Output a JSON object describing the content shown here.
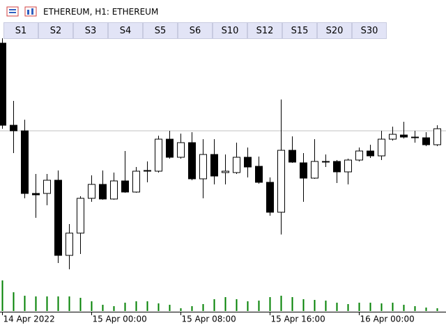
{
  "header": {
    "title": "ETHEREUM, H1:  ETHEREUM"
  },
  "buttons": [
    "S1",
    "S2",
    "S3",
    "S4",
    "S5",
    "S6",
    "S10",
    "S12",
    "S15",
    "S20",
    "S30"
  ],
  "chart_data": {
    "type": "candlestick",
    "categories": [
      "14 Apr 2022",
      null,
      null,
      null,
      null,
      null,
      null,
      null,
      "15 Apr 00:00",
      null,
      null,
      null,
      null,
      null,
      null,
      null,
      "15 Apr 08:00",
      null,
      null,
      null,
      null,
      null,
      null,
      null,
      "15 Apr 16:00",
      null,
      null,
      null,
      null,
      null,
      null,
      null,
      "16 Apr 00:00",
      null,
      null,
      null,
      null,
      null,
      null,
      null
    ],
    "open": [
      388,
      270,
      262,
      172,
      172,
      191,
      83,
      115,
      165,
      185,
      164,
      190,
      174,
      204,
      204,
      250,
      224,
      245,
      193,
      228,
      202,
      202,
      224,
      211,
      188,
      145,
      234,
      216,
      194,
      217,
      218,
      203,
      220,
      233,
      226,
      250,
      256,
      253,
      252,
      242
    ],
    "high": [
      395,
      305,
      278,
      200,
      200,
      205,
      128,
      168,
      198,
      205,
      202,
      233,
      210,
      218,
      255,
      262,
      258,
      260,
      250,
      250,
      228,
      245,
      238,
      225,
      195,
      307,
      254,
      230,
      250,
      228,
      220,
      222,
      238,
      242,
      262,
      268,
      275,
      262,
      260,
      270
    ],
    "low": [
      265,
      230,
      165,
      137,
      155,
      72,
      63,
      85,
      160,
      163,
      163,
      173,
      173,
      188,
      202,
      222,
      222,
      191,
      165,
      185,
      185,
      200,
      195,
      186,
      140,
      113,
      216,
      160,
      193,
      210,
      187,
      185,
      218,
      223,
      220,
      248,
      251,
      245,
      240,
      240
    ],
    "close": [
      270,
      262,
      172,
      170,
      191,
      83,
      115,
      165,
      185,
      164,
      190,
      174,
      204,
      205,
      250,
      224,
      245,
      193,
      228,
      197,
      204,
      224,
      210,
      188,
      145,
      234,
      217,
      194,
      218,
      218,
      203,
      220,
      233,
      226,
      250,
      257,
      253,
      252,
      242,
      265
    ],
    "volumes": [
      44,
      27,
      22,
      21,
      21,
      21,
      21,
      19,
      14,
      9,
      7,
      12,
      14,
      14,
      11,
      9,
      4,
      7,
      10,
      17,
      20,
      17,
      14,
      15,
      20,
      22,
      20,
      17,
      16,
      15,
      12,
      10,
      12,
      12,
      11,
      12,
      9,
      7,
      5,
      4
    ],
    "ylim": [
      0,
      400
    ],
    "vlim": [
      0,
      60
    ],
    "price_line": 262,
    "up_color": "#ffffff",
    "down_color": "#000000",
    "volume_color": "#008000",
    "price_line_color": "#c0c0c0"
  }
}
